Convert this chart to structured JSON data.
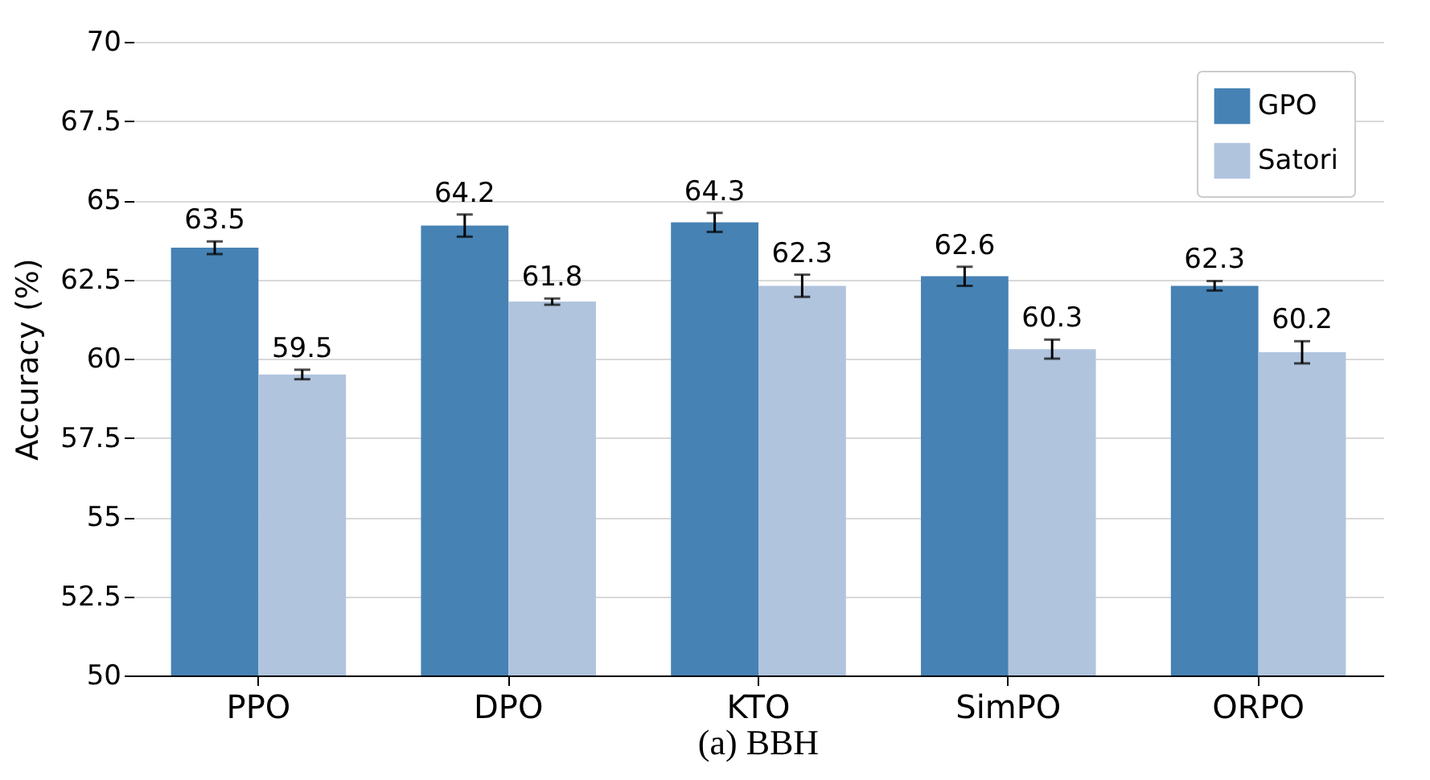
{
  "chart_data": {
    "type": "bar",
    "title": "(a) BBH",
    "ylabel": "Accuracy (%)",
    "categories": [
      "PPO",
      "DPO",
      "KTO",
      "SimPO",
      "ORPO"
    ],
    "series": [
      {
        "name": "GPO",
        "color": "#4682b4",
        "values": [
          63.5,
          64.2,
          64.3,
          62.6,
          62.3
        ],
        "errors": [
          0.2,
          0.35,
          0.3,
          0.3,
          0.15
        ]
      },
      {
        "name": "Satori",
        "color": "#b0c4de",
        "values": [
          59.5,
          61.8,
          62.3,
          60.3,
          60.2
        ],
        "errors": [
          0.15,
          0.1,
          0.35,
          0.3,
          0.35
        ]
      }
    ],
    "ylim": [
      50,
      70
    ],
    "yticks": [
      50,
      {
        "value": 52.5,
        "label": "52.5"
      },
      55,
      {
        "value": 57.5,
        "label": "57.5"
      },
      60,
      {
        "value": 62.5,
        "label": "62.5"
      },
      65,
      {
        "value": 67.5,
        "label": "67.5"
      },
      70
    ],
    "grid": "y",
    "legend": "top right",
    "data_labels": true
  }
}
